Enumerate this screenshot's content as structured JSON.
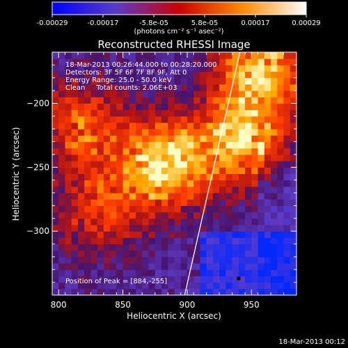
{
  "colorbar": {
    "tick_labels": [
      "-0.00029",
      "-0.00017",
      "-5.8e-05",
      "5.8e-05",
      "0.00017",
      "0.00029"
    ],
    "units_line": "(photons cm⁻² s⁻¹ asec⁻²)",
    "range": [
      -0.00029,
      0.00029
    ],
    "colormap": [
      "#0000ff",
      "#5a3cc8",
      "#ff0000",
      "#ff8c00",
      "#ffffff"
    ]
  },
  "annotations": {
    "time_range": "18-Mar-2013 00:26:44.000 to 00:28:20.000",
    "detectors": "Detectors: 3F 5F 6F 7F 8F 9F, Att 0",
    "energy": "Energy Range: 25.0 - 50.0 keV",
    "clean": "Clean     Total counts: 2.06E+03",
    "peak": "Position of Peak = [884,-255]",
    "footer_date": "18-Mar-2013 00:12"
  },
  "chart_data": {
    "type": "heatmap",
    "title": "Reconstructed RHESSI Image",
    "xlabel": "Heliocentric X (arcsec)",
    "ylabel": "Heliocentric Y (arcsec)",
    "xlim": [
      795,
      985
    ],
    "ylim": [
      -350,
      -160
    ],
    "xticks": [
      800,
      850,
      900,
      950
    ],
    "yticks": [
      -200,
      -250,
      -300
    ],
    "peak": {
      "x": 884,
      "y": -255
    },
    "limb_line": [
      [
        898,
        -350
      ],
      [
        941,
        -160
      ]
    ],
    "sources": [
      {
        "x": 880,
        "y": -250,
        "peak": 1.0
      },
      {
        "x": 940,
        "y": -230,
        "peak": 0.9
      },
      {
        "x": 955,
        "y": -175,
        "peak": 0.85
      },
      {
        "x": 815,
        "y": -220,
        "peak": 0.6
      },
      {
        "x": 830,
        "y": -285,
        "peak": 0.5
      }
    ],
    "grid": false
  }
}
